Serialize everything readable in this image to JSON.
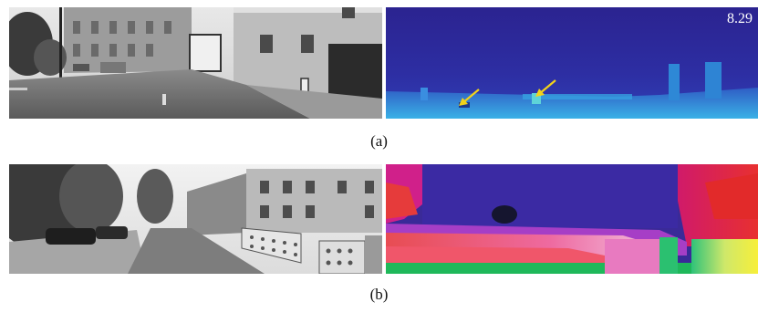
{
  "figure": {
    "row_a": {
      "caption": "(a)",
      "depth_score": "8.29",
      "arrow_color": "#f2d21a"
    },
    "row_b": {
      "caption": "(b)"
    }
  }
}
